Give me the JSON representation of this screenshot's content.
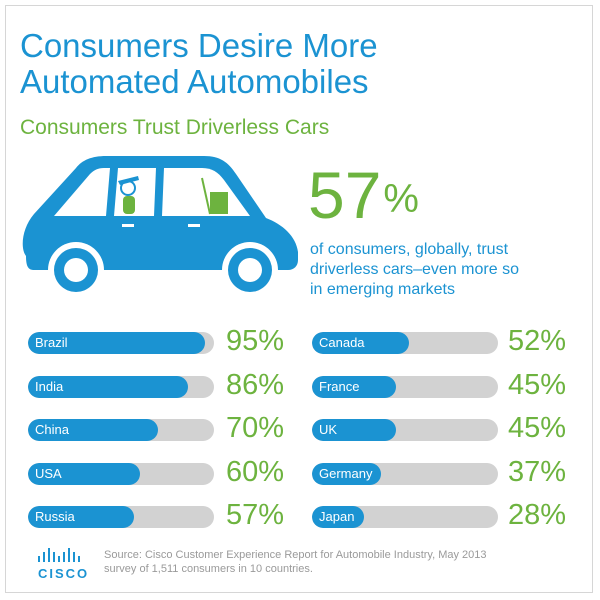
{
  "header": {
    "title_line1": "Consumers Desire More",
    "title_line2": "Automated Automobiles",
    "subtitle": "Consumers Trust Driverless Cars"
  },
  "highlight": {
    "value": "57",
    "symbol": "%",
    "desc_line1": "of consumers, globally, trust",
    "desc_line2": "driverless cars–even more so",
    "desc_line3": "in emerging markets"
  },
  "footer": {
    "logo": "CISCO",
    "source_line1": "Source: Cisco Customer Experience Report for Automobile Industry, May 2013",
    "source_line2": "survey of 1,511 consumers in 10 countries."
  },
  "colors": {
    "blue": "#1b93d2",
    "green": "#6db33f",
    "track": "#d2d2d2"
  },
  "chart_data": {
    "type": "bar",
    "orientation": "horizontal",
    "unit": "%",
    "ylim": [
      0,
      100
    ],
    "categories": [
      "Brazil",
      "India",
      "China",
      "USA",
      "Russia",
      "Canada",
      "France",
      "UK",
      "Germany",
      "Japan"
    ],
    "values": [
      95,
      86,
      70,
      60,
      57,
      52,
      45,
      45,
      37,
      28
    ],
    "value_labels": [
      "95%",
      "86%",
      "70%",
      "60%",
      "57%",
      "52%",
      "45%",
      "45%",
      "37%",
      "28%"
    ]
  }
}
